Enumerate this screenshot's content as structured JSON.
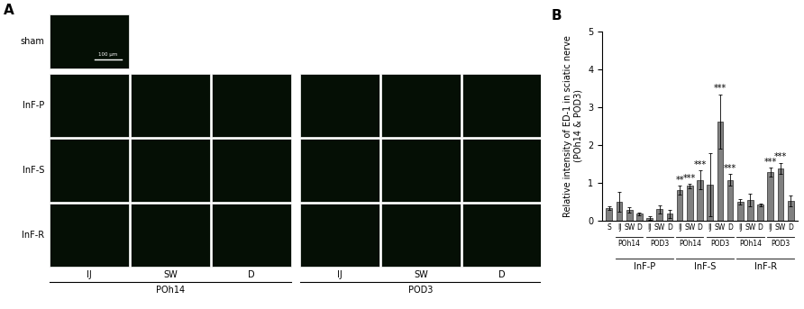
{
  "panel_a": {
    "panel_label": "A",
    "rows": [
      "sham",
      "InF-P",
      "InF-S",
      "InF-R"
    ],
    "columns": [
      "IJ",
      "SW",
      "D",
      "IJ",
      "SW",
      "D"
    ],
    "column_groups": [
      "POh14",
      "POD3"
    ],
    "scale_bar": "100 μm"
  },
  "chart_data": {
    "type": "bar",
    "panel_label": "B",
    "ylabel": "Relative intensity of ED-1 in sciatic nerve\n(POh14 & POD3)",
    "categories": [
      "S",
      "IJ",
      "SW",
      "D",
      "IJ",
      "SW",
      "D",
      "IJ",
      "SW",
      "D",
      "IJ",
      "SW",
      "D",
      "IJ",
      "SW",
      "D",
      "IJ",
      "SW",
      "D"
    ],
    "values": [
      0.33,
      0.5,
      0.28,
      0.18,
      0.08,
      0.3,
      0.18,
      0.8,
      0.92,
      1.08,
      0.95,
      2.62,
      1.08,
      0.5,
      0.55,
      0.42,
      1.28,
      1.38,
      0.52
    ],
    "errors": [
      0.05,
      0.27,
      0.07,
      0.03,
      0.05,
      0.1,
      0.1,
      0.12,
      0.06,
      0.25,
      0.83,
      0.72,
      0.15,
      0.07,
      0.17,
      0.03,
      0.12,
      0.15,
      0.15
    ],
    "significance": [
      null,
      null,
      null,
      null,
      null,
      null,
      null,
      "**",
      "***",
      "***",
      null,
      "***",
      "***",
      null,
      null,
      null,
      "***",
      "***",
      null
    ],
    "subgroups": [
      {
        "label": "POh14",
        "start": 1,
        "end": 3
      },
      {
        "label": "POD3",
        "start": 4,
        "end": 6
      },
      {
        "label": "POh14",
        "start": 7,
        "end": 9
      },
      {
        "label": "POD3",
        "start": 10,
        "end": 12
      },
      {
        "label": "POh14",
        "start": 13,
        "end": 15
      },
      {
        "label": "POD3",
        "start": 16,
        "end": 18
      }
    ],
    "groups": [
      {
        "label": "InF-P",
        "start": 1,
        "end": 6
      },
      {
        "label": "InF-S",
        "start": 7,
        "end": 12
      },
      {
        "label": "InF-R",
        "start": 13,
        "end": 18
      }
    ],
    "color": "#808080",
    "ylim": [
      0,
      5
    ],
    "yticks": [
      0,
      1,
      2,
      3,
      4,
      5
    ]
  }
}
